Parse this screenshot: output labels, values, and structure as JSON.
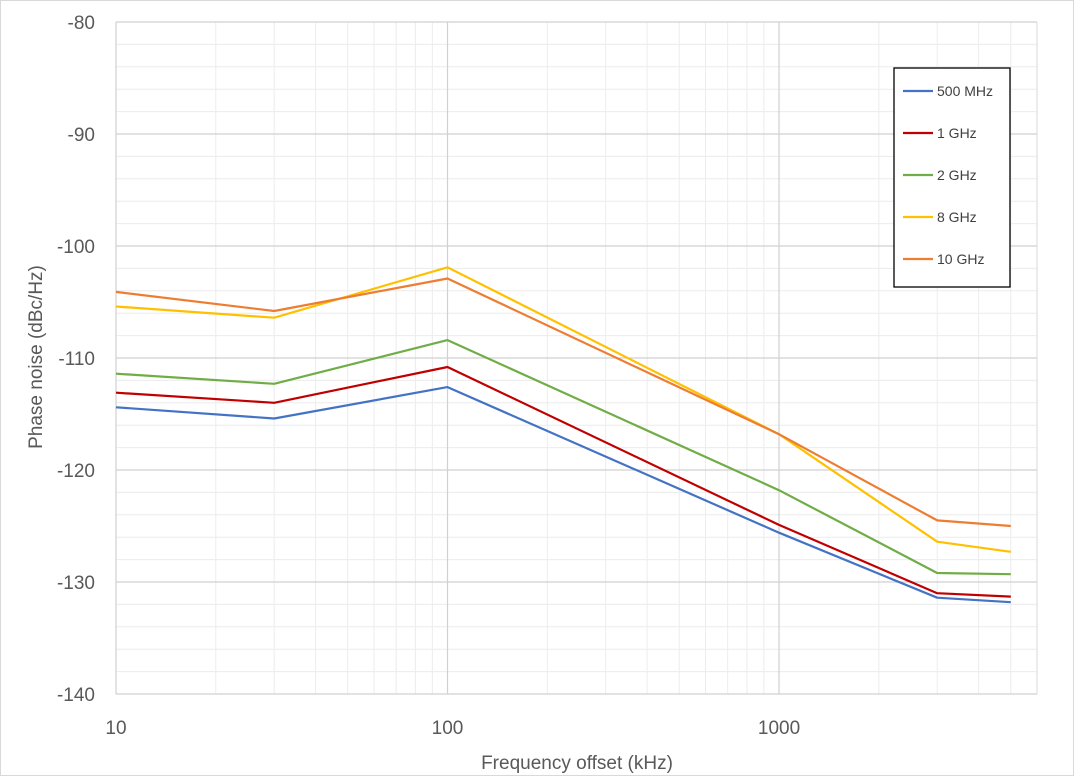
{
  "chart_data": {
    "type": "line",
    "title": "",
    "xlabel": "Frequency offset (kHz)",
    "ylabel": "Phase noise (dBc/Hz)",
    "x_scale": "log",
    "xlim": [
      10,
      6000
    ],
    "ylim": [
      -140,
      -80
    ],
    "x_ticks": [
      10,
      100,
      1000
    ],
    "x_tick_labels": [
      "10",
      "100",
      "1000"
    ],
    "y_ticks": [
      -140,
      -130,
      -120,
      -110,
      -100,
      -90,
      -80
    ],
    "y_tick_labels": [
      "-140",
      "-130",
      "-120",
      "-110",
      "-100",
      "-90",
      "-80"
    ],
    "grid": "major and minor",
    "legend_position": "top-right",
    "x": [
      10,
      30,
      100,
      1000,
      3000,
      5000
    ],
    "series": [
      {
        "name": "500 MHz",
        "color": "#4472C4",
        "values": [
          -114.4,
          -115.4,
          -112.6,
          -125.6,
          -131.4,
          -131.8
        ]
      },
      {
        "name": "1 GHz",
        "color": "#C00000",
        "values": [
          -113.1,
          -114.0,
          -110.8,
          -124.9,
          -131.0,
          -131.3
        ]
      },
      {
        "name": "2 GHz",
        "color": "#70AD47",
        "values": [
          -111.4,
          -112.3,
          -108.4,
          -121.8,
          -129.2,
          -129.3
        ]
      },
      {
        "name": "8 GHz",
        "color": "#FFC000",
        "values": [
          -105.4,
          -106.4,
          -101.9,
          -116.8,
          -126.4,
          -127.3
        ]
      },
      {
        "name": "10 GHz",
        "color": "#ED7D31",
        "values": [
          -104.1,
          -105.8,
          -102.9,
          -116.8,
          -124.5,
          -125.0
        ]
      }
    ]
  }
}
